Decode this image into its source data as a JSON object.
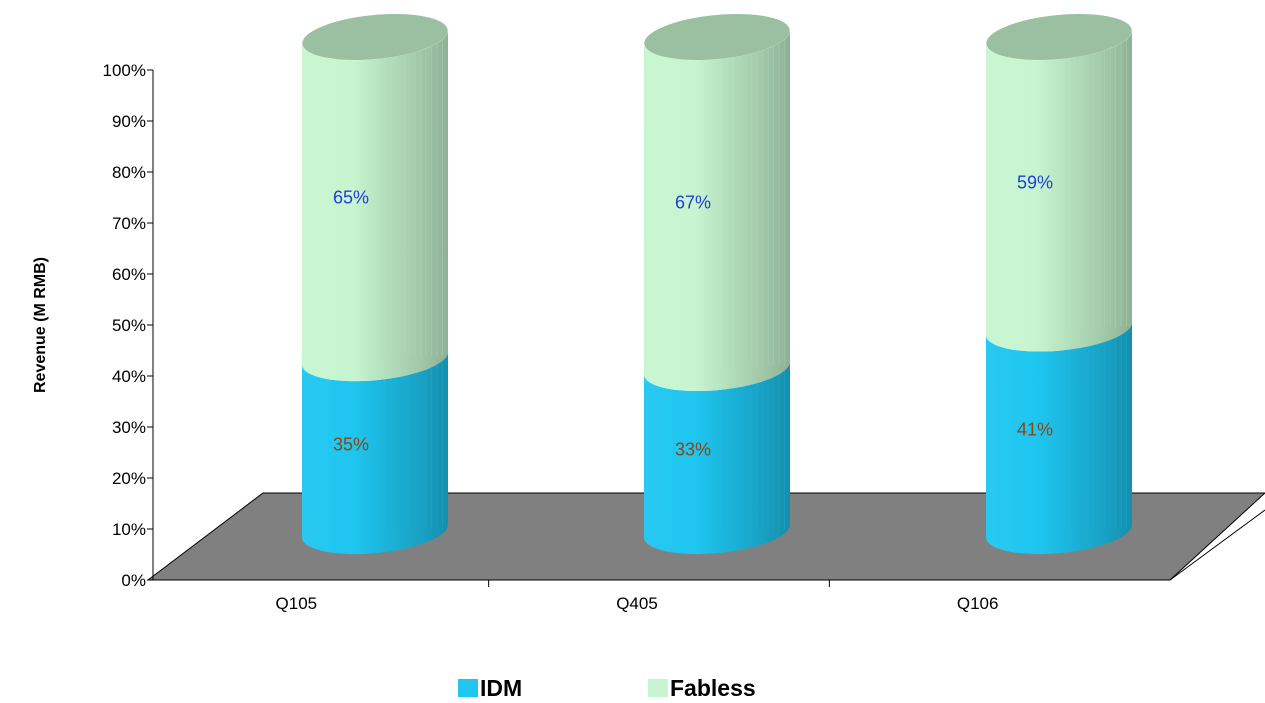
{
  "chart_data": {
    "type": "bar",
    "stacked": true,
    "style": "3d-cylinder",
    "title": "",
    "xlabel": "",
    "ylabel": "Revenue (M RMB)",
    "ylim": [
      0,
      100
    ],
    "y_ticks": [
      "0%",
      "10%",
      "20%",
      "30%",
      "40%",
      "50%",
      "60%",
      "70%",
      "80%",
      "90%",
      "100%"
    ],
    "categories": [
      "Q105",
      "Q405",
      "Q106"
    ],
    "series": [
      {
        "name": "IDM",
        "values": [
          35,
          33,
          41
        ],
        "labels": [
          "35%",
          "33%",
          "41%"
        ],
        "color": "#1ec6f0",
        "label_color": "#8b4513"
      },
      {
        "name": "Fabless",
        "values": [
          65,
          67,
          59
        ],
        "labels": [
          "65%",
          "67%",
          "59%"
        ],
        "color": "#c6f5cf",
        "label_color": "#1f3fd6"
      }
    ],
    "floor_color": "#808080",
    "legend_position": "bottom"
  }
}
